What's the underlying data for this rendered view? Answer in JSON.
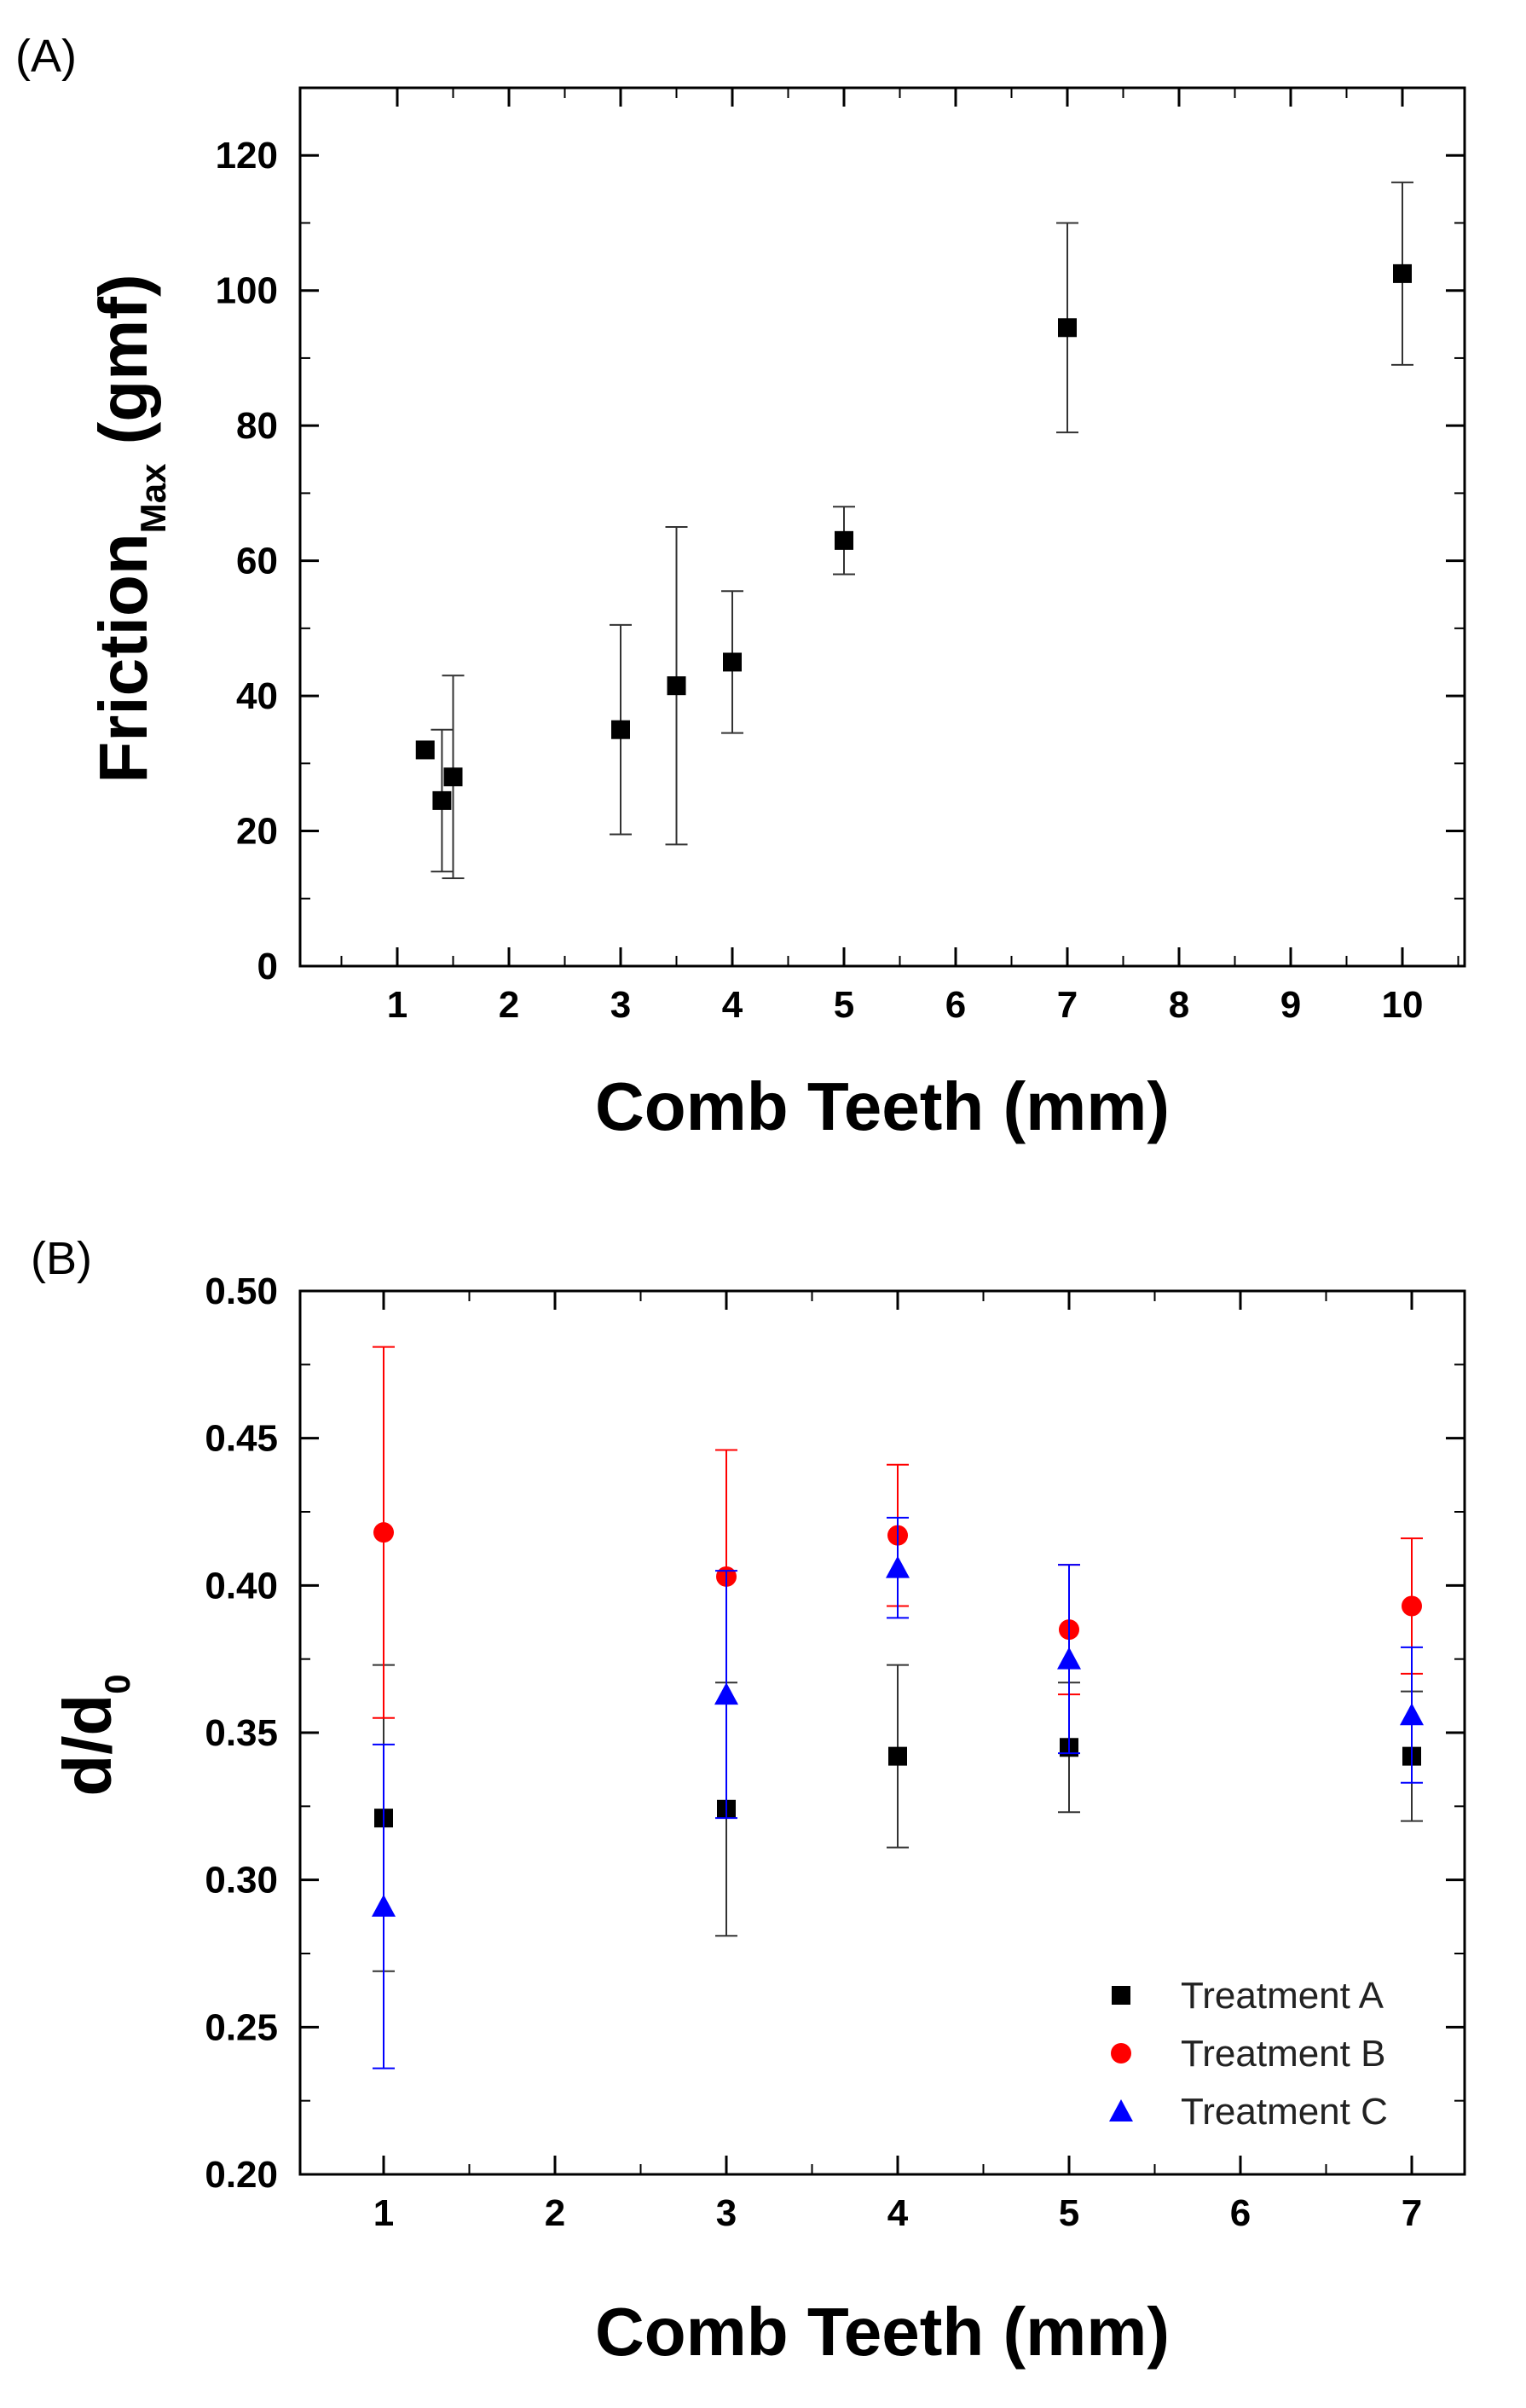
{
  "chart_data": [
    {
      "panel": "(A)",
      "type": "scatter",
      "xlabel": "Comb Teeth (mm)",
      "ylabel": "Friction",
      "ylabel_sub": "Max",
      "ylabel_unit": " (gmf)",
      "x_ticks": [
        "1",
        "2",
        "3",
        "4",
        "5",
        "6",
        "7",
        "8",
        "9",
        "10"
      ],
      "ylim": [
        0,
        130
      ],
      "y_ticks": [
        0,
        20,
        40,
        60,
        80,
        100,
        120
      ],
      "series": [
        {
          "name": "Friction Max",
          "color": "#000000",
          "marker": "square",
          "points": [
            {
              "x": 1.25,
              "y": 32,
              "err": null
            },
            {
              "x": 1.4,
              "y": 24.5,
              "err": 10.5
            },
            {
              "x": 1.5,
              "y": 28,
              "err": 15
            },
            {
              "x": 3,
              "y": 35,
              "err": 15.5
            },
            {
              "x": 3.5,
              "y": 41.5,
              "err": 23.5
            },
            {
              "x": 4,
              "y": 45,
              "err": 10.5
            },
            {
              "x": 5,
              "y": 63,
              "err": 5
            },
            {
              "x": 7,
              "y": 94.5,
              "err": 15.5
            },
            {
              "x": 10,
              "y": 102.5,
              "err": 13.5
            }
          ]
        }
      ]
    },
    {
      "panel": "(B)",
      "type": "scatter",
      "xlabel": "Comb Teeth (mm)",
      "ylabel": "d/d",
      "ylabel_sub": "0",
      "x_ticks": [
        "1",
        "2",
        "3",
        "4",
        "5",
        "6",
        "7"
      ],
      "ylim": [
        0.2,
        0.5
      ],
      "y_ticks": [
        "0.20",
        "0.25",
        "0.30",
        "0.35",
        "0.40",
        "0.45",
        "0.50"
      ],
      "legend_position": "bottom-right",
      "series": [
        {
          "name": "Treatment A",
          "color": "#000000",
          "marker": "square",
          "points": [
            {
              "x": 1,
              "y": 0.321,
              "err": 0.052
            },
            {
              "x": 3,
              "y": 0.324,
              "err": 0.043
            },
            {
              "x": 4,
              "y": 0.342,
              "err": 0.031
            },
            {
              "x": 5,
              "y": 0.345,
              "err": 0.022
            },
            {
              "x": 7,
              "y": 0.342,
              "err": 0.022
            }
          ]
        },
        {
          "name": "Treatment B",
          "color": "#ff0000",
          "marker": "circle",
          "points": [
            {
              "x": 1,
              "y": 0.418,
              "err": 0.063
            },
            {
              "x": 3,
              "y": 0.403,
              "err": 0.043
            },
            {
              "x": 4,
              "y": 0.417,
              "err": 0.024
            },
            {
              "x": 5,
              "y": 0.385,
              "err": 0.022
            },
            {
              "x": 7,
              "y": 0.393,
              "err": 0.023
            }
          ]
        },
        {
          "name": "Treatment C",
          "color": "#0000ff",
          "marker": "triangle",
          "points": [
            {
              "x": 1,
              "y": 0.291,
              "err": 0.055
            },
            {
              "x": 3,
              "y": 0.363,
              "err": 0.042
            },
            {
              "x": 4,
              "y": 0.406,
              "err": 0.017
            },
            {
              "x": 5,
              "y": 0.375,
              "err": 0.032
            },
            {
              "x": 7,
              "y": 0.356,
              "err": 0.023
            }
          ]
        }
      ]
    }
  ]
}
